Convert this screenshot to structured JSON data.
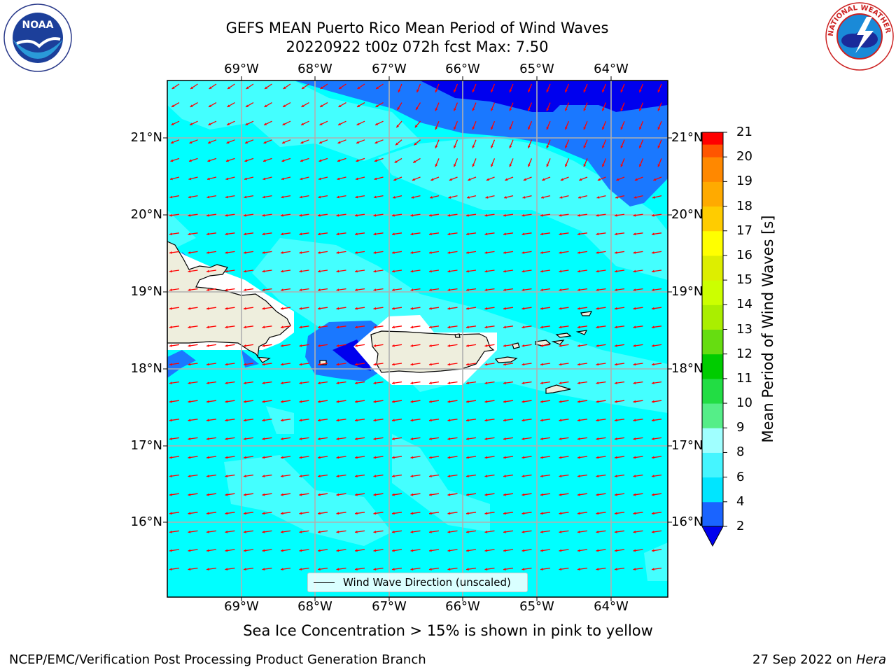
{
  "title_line1": "GEFS MEAN Puerto Rico Mean Period of Wind Waves",
  "title_line2": "20220922 t00z 072h fcst   Max: 7.50",
  "lon_labels": [
    "69°W",
    "68°W",
    "67°W",
    "66°W",
    "65°W",
    "64°W"
  ],
  "lat_labels": [
    "21°N",
    "20°N",
    "19°N",
    "18°N",
    "17°N",
    "16°N"
  ],
  "legend_label": "Wind Wave Direction (unscaled)",
  "caption": "Sea Ice Concentration > 15% is shown in pink to yellow",
  "footer_left": "NCEP/EMC/Verification Post Processing Product Generation Branch",
  "footer_right_date": "27 Sep 2022 on ",
  "footer_right_host": "Hera",
  "colorbar": {
    "label": "Mean Period of Wind Waves [s]",
    "ticks": [
      "2",
      "4",
      "6",
      "8",
      "9",
      "10",
      "11",
      "12",
      "13",
      "14",
      "15",
      "16",
      "17",
      "18",
      "19",
      "20",
      "21"
    ],
    "colors": [
      "#1a64ff",
      "#00e5ff",
      "#45f5ff",
      "#a0ffff",
      "#55ee88",
      "#22dd44",
      "#00cc00",
      "#66dd11",
      "#aaee00",
      "#ccff00",
      "#ddee00",
      "#ffff00",
      "#ffcc00",
      "#ffaa00",
      "#ff8800",
      "#ff5500",
      "#ff2200",
      "#ff0000"
    ],
    "under_color": "#0000ee"
  },
  "colors": {
    "ocean_base": "#00ffff",
    "ocean_light": "#44ffff",
    "ocean_mid": "#1a78ff",
    "ocean_deep": "#0000ee",
    "land": "#eeeedd",
    "arrow": "#ff0000",
    "grid": "#b0b0b0"
  },
  "logos": {
    "noaa": "NOAA",
    "nws": "NATIONAL WEATHER SERVICE"
  }
}
